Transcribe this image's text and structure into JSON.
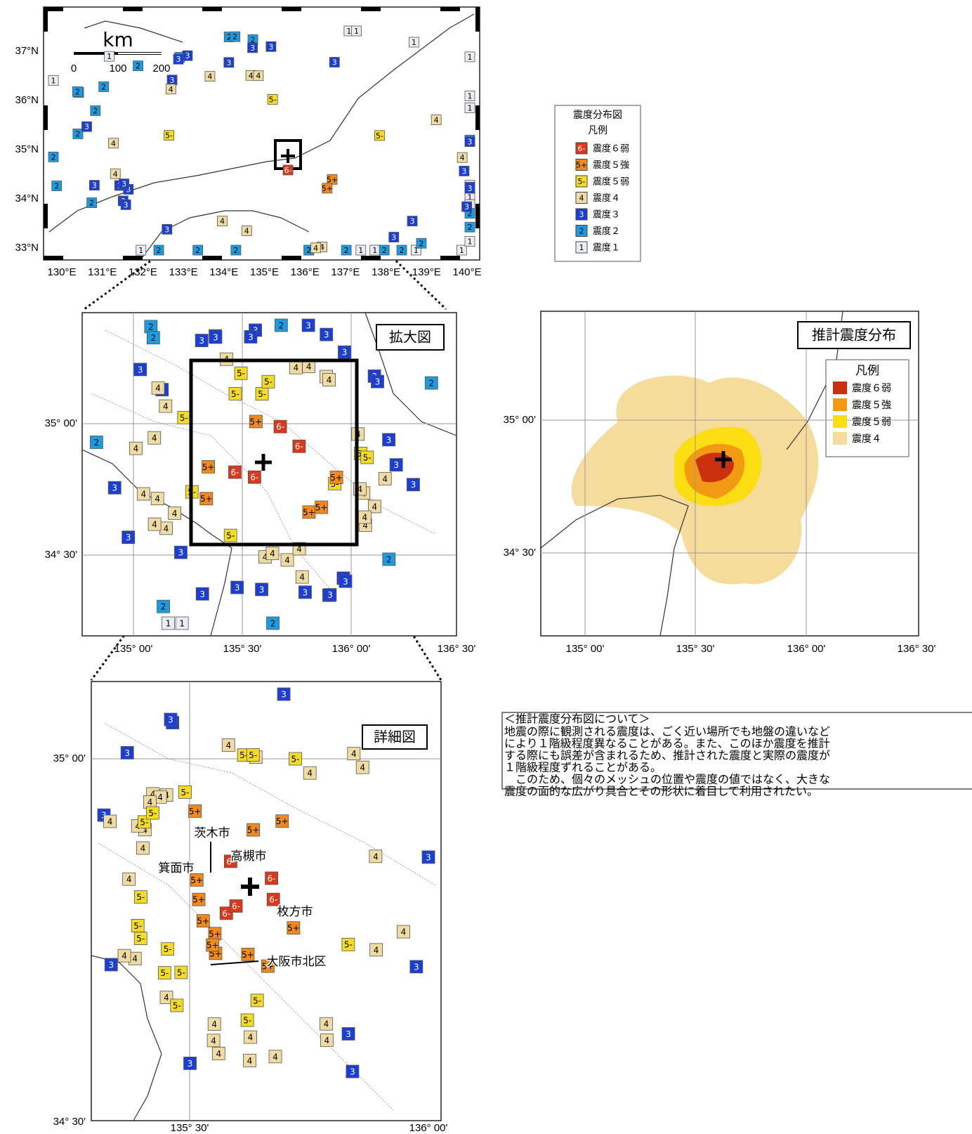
{
  "overview_map": {
    "lat_labels": [
      "37°N",
      "36°N",
      "35°N",
      "34°N",
      "33°N"
    ],
    "lon_labels": [
      "130°E",
      "131°E",
      "132°E",
      "133°E",
      "134°E",
      "135°E",
      "136°E",
      "137°E",
      "138°E",
      "139°E",
      "140°E"
    ],
    "scale": {
      "unit": "km",
      "ticks": [
        "0",
        "100",
        "200"
      ]
    },
    "markers": [
      "6-",
      "5+",
      "5+",
      "5-",
      "5-",
      "5-",
      "4",
      "4",
      "4",
      "4",
      "4",
      "4",
      "4",
      "4",
      "4",
      "4",
      "4",
      "4",
      "3",
      "3",
      "3",
      "3",
      "3",
      "3",
      "3",
      "3",
      "3",
      "3",
      "3",
      "3",
      "3",
      "3",
      "3",
      "3",
      "3",
      "3",
      "3",
      "3",
      "3",
      "3",
      "2",
      "2",
      "2",
      "2",
      "2",
      "2",
      "2",
      "2",
      "2",
      "2",
      "2",
      "2",
      "2",
      "2",
      "2",
      "2",
      "2",
      "2",
      "2",
      "2",
      "2",
      "2",
      "2",
      "2",
      "1",
      "1",
      "1",
      "1",
      "1",
      "1",
      "1",
      "1",
      "1",
      "1",
      "1",
      "1",
      "1",
      "1",
      "1",
      "1",
      "1",
      "1",
      "1",
      "1"
    ]
  },
  "intensity_legend": {
    "title": "震度分布図",
    "subtitle": "凡例",
    "items": [
      {
        "symbol": "6-",
        "label": "震度６弱",
        "color": "#d8381c"
      },
      {
        "symbol": "5+",
        "label": "震度５強",
        "color": "#ee8a1e"
      },
      {
        "symbol": "5-",
        "label": "震度５弱",
        "color": "#f4dc24"
      },
      {
        "symbol": "4",
        "label": "震度４",
        "color": "#f0dca2"
      },
      {
        "symbol": "3",
        "label": "震度３",
        "color": "#1c3fd2"
      },
      {
        "symbol": "2",
        "label": "震度２",
        "color": "#1c9be0"
      },
      {
        "symbol": "1",
        "label": "震度１",
        "color": "#ebebf4"
      }
    ]
  },
  "zoom_map": {
    "title": "拡大図",
    "lat_labels": [
      "35° 00'",
      "34° 30'"
    ],
    "lon_labels": [
      "135° 00'",
      "135° 30'",
      "136° 00'",
      "136° 30'"
    ],
    "markers": [
      "6-",
      "6-",
      "6-",
      "6-",
      "5+",
      "5+",
      "5+",
      "5+",
      "5+",
      "5+",
      "5-",
      "5-",
      "5-",
      "5-",
      "5-",
      "5-",
      "5-",
      "5-",
      "5-",
      "5-",
      "4",
      "4",
      "4",
      "4",
      "4",
      "4",
      "4",
      "4",
      "4",
      "4",
      "4",
      "4",
      "4",
      "4",
      "4",
      "4",
      "4",
      "4",
      "4",
      "4",
      "4",
      "4",
      "4",
      "4",
      "4",
      "4",
      "3",
      "3",
      "3",
      "3",
      "3",
      "3",
      "3",
      "3",
      "3",
      "3",
      "3",
      "3",
      "3",
      "3",
      "3",
      "3",
      "3",
      "3",
      "3",
      "3",
      "3",
      "3",
      "3",
      "3",
      "3",
      "3",
      "2",
      "2",
      "2",
      "2",
      "2",
      "2",
      "2",
      "2",
      "1",
      "1"
    ]
  },
  "estimate_map": {
    "title": "推計震度分布",
    "legend_title": "凡例",
    "legend": [
      {
        "label": "震度６弱",
        "color": "#c8300e"
      },
      {
        "label": "震度５強",
        "color": "#f29a12"
      },
      {
        "label": "震度５弱",
        "color": "#fadd12"
      },
      {
        "label": "震度４",
        "color": "#f6dc9c"
      }
    ],
    "lat_labels": [
      "35° 00'",
      "34° 30'"
    ],
    "lon_labels": [
      "135° 00'",
      "135° 30'",
      "136° 00'",
      "136° 30'"
    ]
  },
  "detail_map": {
    "title": "詳細図",
    "lat_labels": [
      "35° 00'",
      "34° 30'"
    ],
    "lon_labels": [
      "135° 30'",
      "136° 00'"
    ],
    "cities": [
      "茨木市",
      "高槻市",
      "箕面市",
      "枚方市",
      "大阪市北区"
    ],
    "markers": [
      "6-",
      "6-",
      "6-",
      "6-",
      "6-",
      "5+",
      "5+",
      "5+",
      "5+",
      "5+",
      "5+",
      "5+",
      "5+",
      "5+",
      "5+",
      "5+",
      "5+",
      "5-",
      "5-",
      "5-",
      "5-",
      "5-",
      "5-",
      "5-",
      "5-",
      "5-",
      "5-",
      "5-",
      "5-",
      "5-",
      "5-",
      "5-",
      "5-",
      "4",
      "4",
      "4",
      "4",
      "4",
      "4",
      "4",
      "4",
      "4",
      "4",
      "4",
      "4",
      "4",
      "4",
      "4",
      "4",
      "4",
      "4",
      "4",
      "4",
      "4",
      "4",
      "4",
      "4",
      "4",
      "4",
      "4",
      "4",
      "3",
      "3",
      "3",
      "3",
      "3",
      "3",
      "3",
      "3",
      "3",
      "3",
      "3"
    ]
  },
  "note": {
    "heading": "＜推計震度分布図について＞",
    "lines": [
      "地震の際に観測される震度は、ごく近い場所でも地盤の違いなど",
      "により１階級程度異なることがある。また、このほか震度を推計",
      "する際にも誤差が含まれるため、推計された震度と実際の震度が",
      "１階級程度ずれることがある。",
      "　このため、個々のメッシュの位置や震度の値ではなく、大きな",
      "震度の面的な広がり具合とその形状に着目して利用されたい。"
    ]
  }
}
